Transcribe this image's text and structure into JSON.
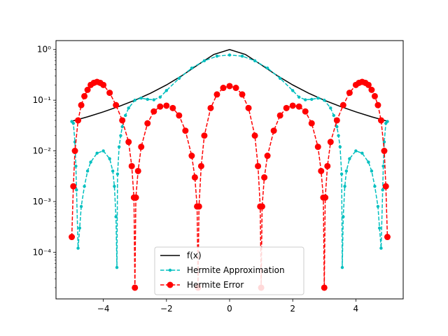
{
  "chart_data": {
    "type": "line",
    "title": "",
    "xlabel": "",
    "ylabel": "",
    "xlim": [
      -5.5,
      5.5
    ],
    "ylim": [
      1.2e-05,
      1.5
    ],
    "yscale": "log",
    "grid": false,
    "legend_position": "lower-center",
    "x_ticks": [
      -4,
      -2,
      0,
      2,
      4
    ],
    "x_tick_labels": [
      "−4",
      "−2",
      "0",
      "2",
      "4"
    ],
    "y_ticks": [
      0.0001,
      0.001,
      0.01,
      0.1,
      1
    ],
    "y_tick_labels": [
      "10⁻⁴",
      "10⁻³",
      "10⁻²",
      "10⁻¹",
      "10⁰"
    ],
    "series": [
      {
        "name": "f(x)",
        "color": "#000000",
        "style": "solid",
        "marker": "none",
        "x": [
          -5,
          -4.5,
          -4,
          -3.5,
          -3,
          -2.5,
          -2,
          -1.5,
          -1,
          -0.5,
          0,
          0.5,
          1,
          1.5,
          2,
          2.5,
          3,
          3.5,
          4,
          4.5,
          5
        ],
        "y": [
          0.0385,
          0.047,
          0.0588,
          0.0755,
          0.1,
          0.138,
          0.2,
          0.308,
          0.5,
          0.8,
          1.0,
          0.8,
          0.5,
          0.308,
          0.2,
          0.138,
          0.1,
          0.0755,
          0.0588,
          0.047,
          0.0385
        ]
      },
      {
        "name": "Hermite Approximation",
        "color": "#00bfbf",
        "style": "dashed",
        "marker": "small-dot",
        "x": [
          -5,
          -4.95,
          -4.9,
          -4.87,
          -4.85,
          -4.8,
          -4.75,
          -4.7,
          -4.6,
          -4.5,
          -4.4,
          -4.2,
          -4.0,
          -3.8,
          -3.7,
          -3.65,
          -3.6,
          -3.57,
          -3.55,
          -3.5,
          -3.45,
          -3.4,
          -3.3,
          -3.2,
          -3.0,
          -2.8,
          -2.6,
          -2.4,
          -2.2,
          -2.0,
          -1.6,
          -1.2,
          -0.8,
          -0.4,
          0,
          0.4,
          0.8,
          1.2,
          1.6,
          2.0,
          2.2,
          2.4,
          2.6,
          2.8,
          3.0,
          3.2,
          3.3,
          3.4,
          3.45,
          3.5,
          3.55,
          3.57,
          3.6,
          3.65,
          3.7,
          3.8,
          4.0,
          4.2,
          4.4,
          4.5,
          4.6,
          4.7,
          4.75,
          4.8,
          4.85,
          4.87,
          4.9,
          4.95,
          5
        ],
        "y": [
          0.038,
          0.035,
          0.015,
          0.005,
          0.0017,
          0.00012,
          0.0003,
          0.0008,
          0.002,
          0.004,
          0.006,
          0.009,
          0.01,
          0.007,
          0.004,
          0.002,
          0.0005,
          5e-05,
          0.0035,
          0.012,
          0.02,
          0.03,
          0.05,
          0.07,
          0.1,
          0.11,
          0.104,
          0.102,
          0.115,
          0.155,
          0.27,
          0.43,
          0.6,
          0.74,
          0.78,
          0.74,
          0.6,
          0.43,
          0.27,
          0.155,
          0.115,
          0.102,
          0.104,
          0.11,
          0.1,
          0.07,
          0.05,
          0.03,
          0.02,
          0.012,
          0.0035,
          5e-05,
          0.0005,
          0.002,
          0.004,
          0.007,
          0.01,
          0.009,
          0.006,
          0.004,
          0.002,
          0.0008,
          0.0003,
          0.00012,
          0.0017,
          0.005,
          0.015,
          0.035,
          0.038
        ]
      },
      {
        "name": "Hermite Error",
        "color": "#ff0000",
        "style": "dashed",
        "marker": "dot",
        "x": [
          -5.0,
          -4.95,
          -4.9,
          -4.8,
          -4.7,
          -4.6,
          -4.5,
          -4.4,
          -4.3,
          -4.2,
          -4.1,
          -4.0,
          -3.8,
          -3.6,
          -3.4,
          -3.2,
          -3.1,
          -3.03,
          -3.0,
          -2.97,
          -2.9,
          -2.8,
          -2.6,
          -2.4,
          -2.2,
          -2.0,
          -1.8,
          -1.6,
          -1.4,
          -1.2,
          -1.1,
          -1.03,
          -1.0,
          -0.97,
          -0.9,
          -0.8,
          -0.6,
          -0.4,
          -0.2,
          0.0,
          0.2,
          0.4,
          0.6,
          0.8,
          0.9,
          0.97,
          1.0,
          1.03,
          1.1,
          1.2,
          1.4,
          1.6,
          1.8,
          2.0,
          2.2,
          2.4,
          2.6,
          2.8,
          2.9,
          2.97,
          3.0,
          3.03,
          3.1,
          3.2,
          3.4,
          3.6,
          3.8,
          4.0,
          4.1,
          4.2,
          4.3,
          4.4,
          4.5,
          4.6,
          4.7,
          4.8,
          4.9,
          4.95,
          5.0
        ],
        "y": [
          0.0002,
          0.002,
          0.01,
          0.04,
          0.08,
          0.12,
          0.16,
          0.2,
          0.22,
          0.23,
          0.22,
          0.2,
          0.14,
          0.08,
          0.04,
          0.015,
          0.005,
          0.0012,
          2e-05,
          0.0012,
          0.004,
          0.012,
          0.035,
          0.06,
          0.075,
          0.078,
          0.07,
          0.05,
          0.025,
          0.008,
          0.003,
          0.0008,
          2e-05,
          0.0008,
          0.005,
          0.02,
          0.07,
          0.13,
          0.175,
          0.19,
          0.175,
          0.13,
          0.07,
          0.02,
          0.005,
          0.0008,
          2e-05,
          0.0008,
          0.003,
          0.008,
          0.025,
          0.05,
          0.07,
          0.078,
          0.075,
          0.06,
          0.035,
          0.012,
          0.004,
          0.0012,
          2e-05,
          0.0012,
          0.005,
          0.015,
          0.04,
          0.08,
          0.14,
          0.2,
          0.22,
          0.23,
          0.22,
          0.2,
          0.16,
          0.12,
          0.08,
          0.04,
          0.01,
          0.002,
          0.0002
        ]
      }
    ]
  }
}
